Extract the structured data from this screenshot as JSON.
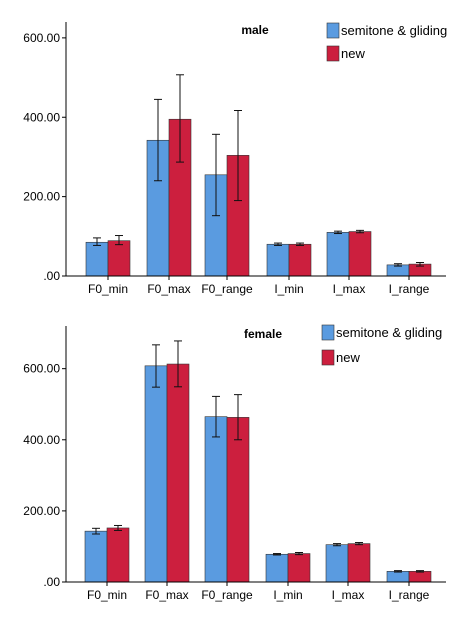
{
  "chart_data": [
    {
      "type": "bar",
      "title": "male",
      "categories": [
        "F0_min",
        "F0_max",
        "F0_range",
        "I_min",
        "I_max",
        "I_range"
      ],
      "ylim": [
        0,
        640
      ],
      "yticks": [
        0,
        200,
        400,
        600
      ],
      "ytick_labels": [
        ".00",
        "200.00",
        "400.00",
        "600.00"
      ],
      "legend_position": "top-right",
      "grid": false,
      "error_bars": true,
      "series": [
        {
          "name": "semitone & gliding",
          "color": "#5a9be0",
          "values": [
            85,
            342,
            255,
            80,
            110,
            28
          ],
          "err_low": [
            77,
            240,
            152,
            77,
            107,
            25
          ],
          "err_high": [
            96,
            445,
            357,
            83,
            113,
            31
          ]
        },
        {
          "name": "new",
          "color": "#cc1f3e",
          "values": [
            89,
            395,
            304,
            80,
            112,
            30
          ],
          "err_low": [
            79,
            287,
            190,
            77,
            109,
            25
          ],
          "err_high": [
            102,
            507,
            417,
            83,
            115,
            34
          ]
        }
      ]
    },
    {
      "type": "bar",
      "title": "female",
      "categories": [
        "F0_min",
        "F0_max",
        "F0_range",
        "I_min",
        "I_max",
        "I_range"
      ],
      "ylim": [
        0,
        720
      ],
      "yticks": [
        0,
        200,
        400,
        600
      ],
      "ytick_labels": [
        ".00",
        "200.00",
        "400.00",
        "600.00"
      ],
      "legend_position": "top-right",
      "grid": false,
      "error_bars": true,
      "series": [
        {
          "name": "semitone & gliding",
          "color": "#5a9be0",
          "values": [
            143,
            608,
            465,
            78,
            105,
            30
          ],
          "err_low": [
            135,
            548,
            408,
            76,
            102,
            28
          ],
          "err_high": [
            151,
            667,
            522,
            80,
            108,
            32
          ]
        },
        {
          "name": "new",
          "color": "#cc1f3e",
          "values": [
            152,
            613,
            463,
            80,
            108,
            30
          ],
          "err_low": [
            145,
            549,
            400,
            77,
            105,
            28
          ],
          "err_high": [
            159,
            678,
            527,
            83,
            111,
            32
          ]
        }
      ]
    }
  ]
}
